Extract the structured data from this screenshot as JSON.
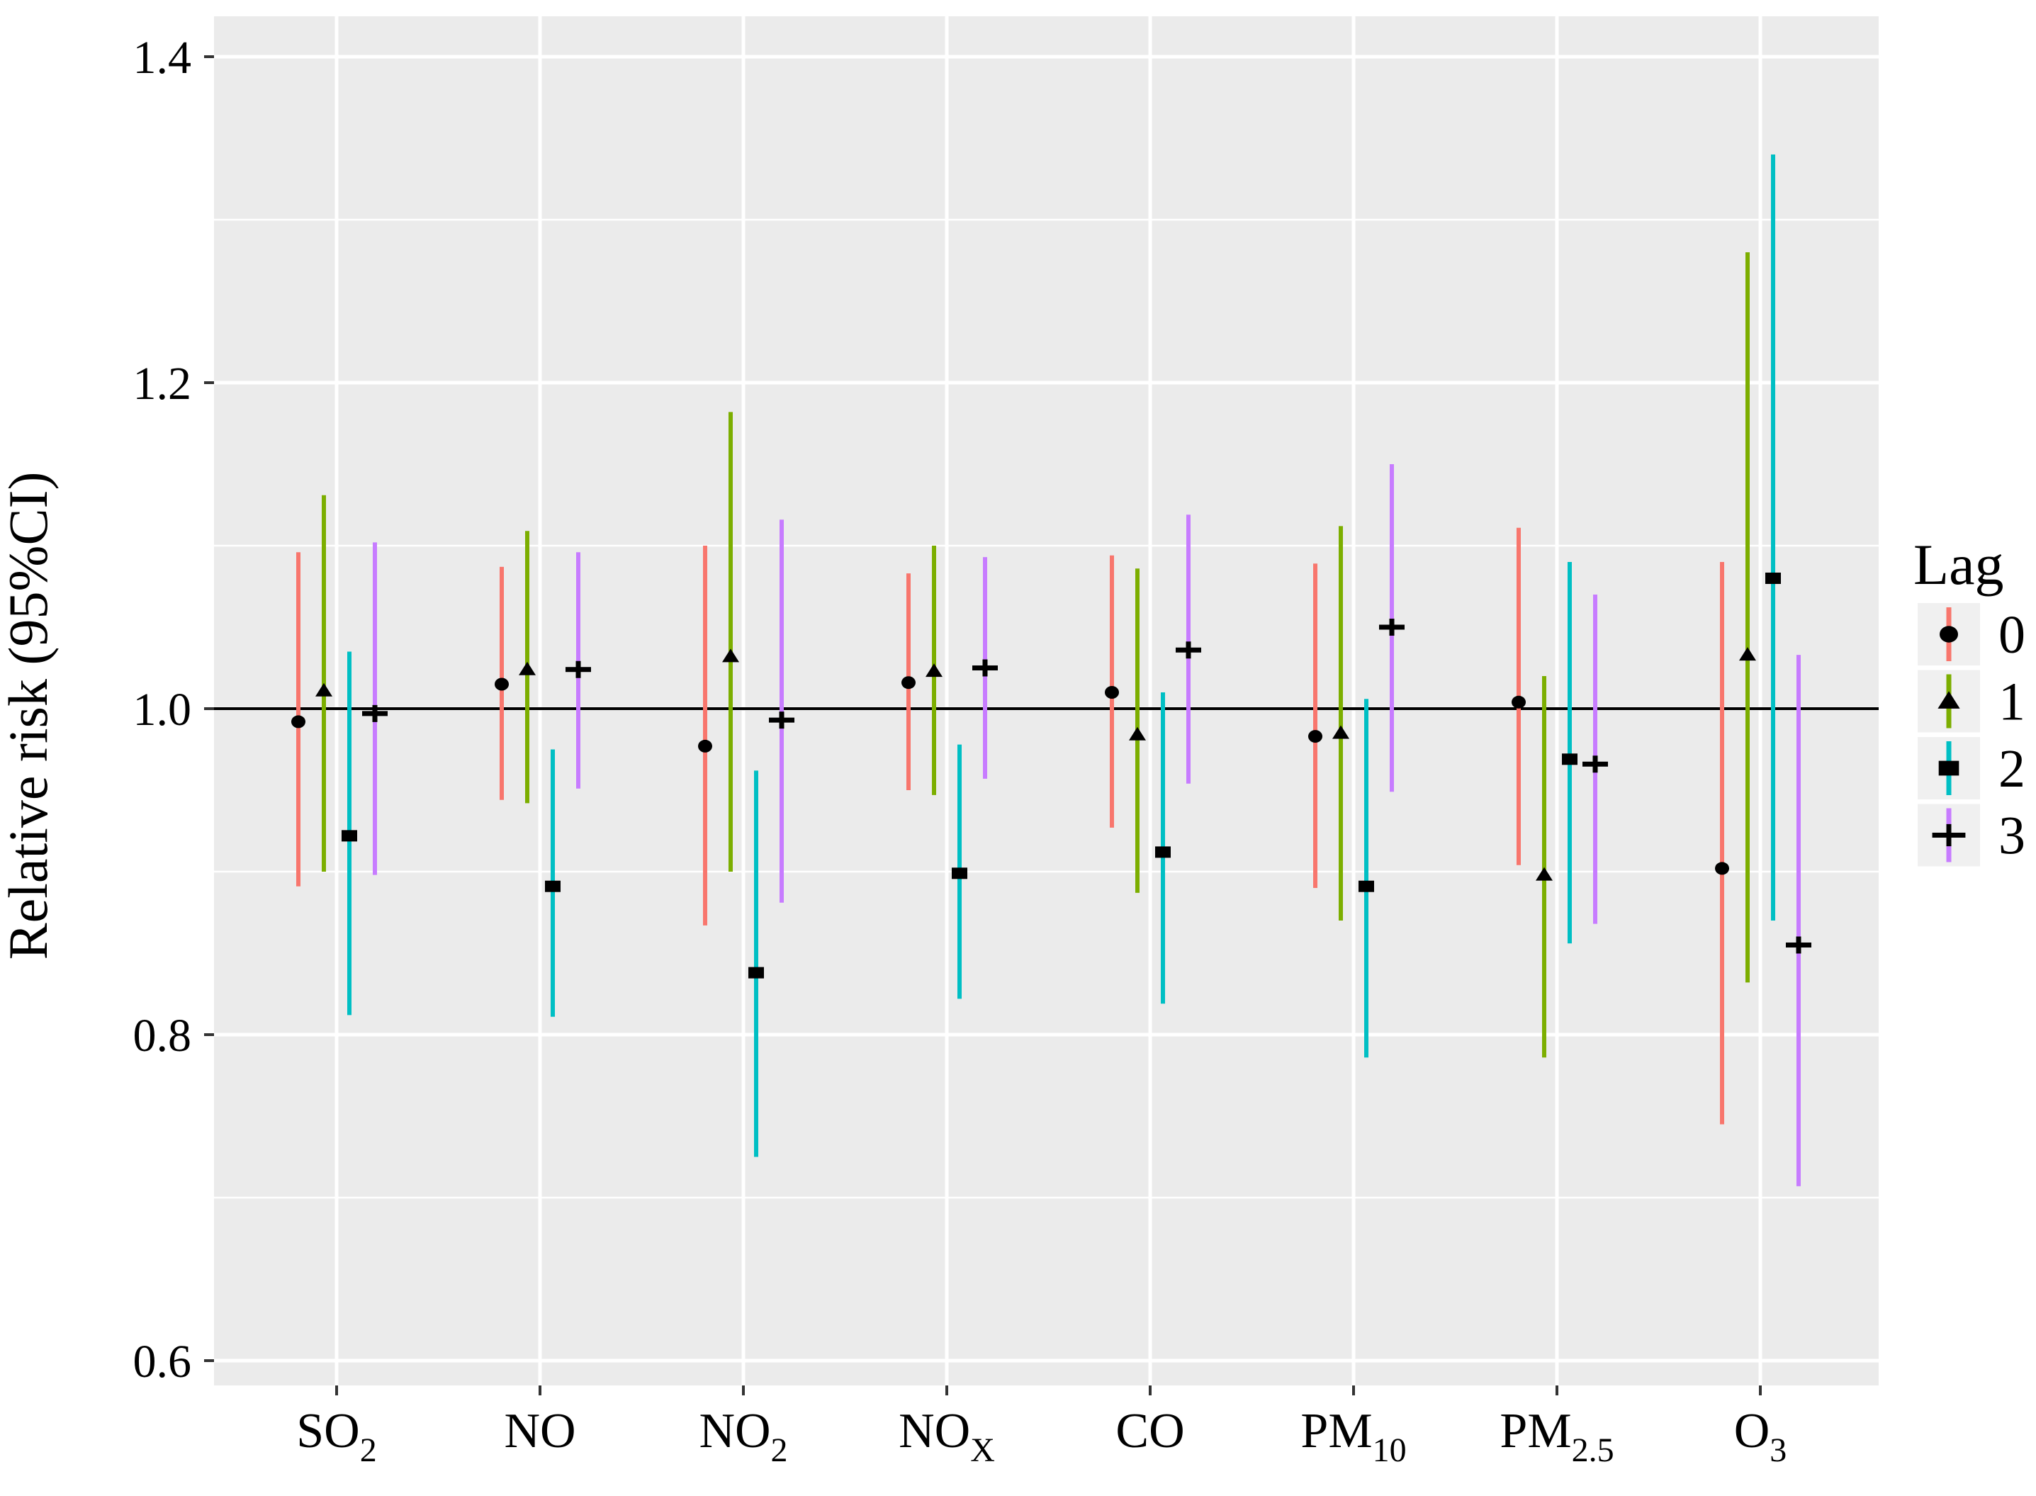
{
  "chart_data": {
    "type": "scatter",
    "subtype": "dodged-point-ranges-forest-plot",
    "title": "",
    "xlabel": "",
    "ylabel": "Relative risk (95%CI)",
    "ylim": [
      0.585,
      1.425
    ],
    "yticks": [
      0.6,
      0.8,
      1.0,
      1.2,
      1.4
    ],
    "ytick_labels": [
      "0.6",
      "0.8",
      "1.0",
      "1.2",
      "1.4"
    ],
    "minor_yticks": [
      0.7,
      0.9,
      1.1,
      1.3
    ],
    "reference_line": 1.0,
    "grid": "on",
    "panel_bg": "#ebebeb",
    "grid_color": "#ffffff",
    "marker_color": "#000000",
    "categories": [
      {
        "main": "SO",
        "sub": "2"
      },
      {
        "main": "NO",
        "sub": ""
      },
      {
        "main": "NO",
        "sub": "2"
      },
      {
        "main": "NO",
        "sub": "X"
      },
      {
        "main": "CO",
        "sub": ""
      },
      {
        "main": "PM",
        "sub": "10"
      },
      {
        "main": "PM",
        "sub": "2.5"
      },
      {
        "main": "O",
        "sub": "3"
      }
    ],
    "legend": {
      "title": "Lag",
      "position": "right"
    },
    "series": [
      {
        "name": "0",
        "marker": "circle",
        "color": "#F8766D",
        "values": [
          {
            "est": 0.992,
            "lo": 0.891,
            "hi": 1.096
          },
          {
            "est": 1.015,
            "lo": 0.944,
            "hi": 1.087
          },
          {
            "est": 0.977,
            "lo": 0.867,
            "hi": 1.1
          },
          {
            "est": 1.016,
            "lo": 0.95,
            "hi": 1.083
          },
          {
            "est": 1.01,
            "lo": 0.927,
            "hi": 1.094
          },
          {
            "est": 0.983,
            "lo": 0.89,
            "hi": 1.089
          },
          {
            "est": 1.004,
            "lo": 0.904,
            "hi": 1.111
          },
          {
            "est": 0.902,
            "lo": 0.745,
            "hi": 1.09
          }
        ]
      },
      {
        "name": "1",
        "marker": "triangle",
        "color": "#7CAE00",
        "values": [
          {
            "est": 1.011,
            "lo": 0.9,
            "hi": 1.131
          },
          {
            "est": 1.024,
            "lo": 0.942,
            "hi": 1.109
          },
          {
            "est": 1.032,
            "lo": 0.9,
            "hi": 1.182
          },
          {
            "est": 1.023,
            "lo": 0.947,
            "hi": 1.1
          },
          {
            "est": 0.984,
            "lo": 0.887,
            "hi": 1.086
          },
          {
            "est": 0.985,
            "lo": 0.87,
            "hi": 1.112
          },
          {
            "est": 0.898,
            "lo": 0.786,
            "hi": 1.02
          },
          {
            "est": 1.033,
            "lo": 0.832,
            "hi": 1.28
          }
        ]
      },
      {
        "name": "2",
        "marker": "square",
        "color": "#00BFC4",
        "values": [
          {
            "est": 0.922,
            "lo": 0.812,
            "hi": 1.035
          },
          {
            "est": 0.891,
            "lo": 0.811,
            "hi": 0.975
          },
          {
            "est": 0.838,
            "lo": 0.725,
            "hi": 0.962
          },
          {
            "est": 0.899,
            "lo": 0.822,
            "hi": 0.978
          },
          {
            "est": 0.912,
            "lo": 0.819,
            "hi": 1.01
          },
          {
            "est": 0.891,
            "lo": 0.786,
            "hi": 1.006
          },
          {
            "est": 0.969,
            "lo": 0.856,
            "hi": 1.09
          },
          {
            "est": 1.08,
            "lo": 0.87,
            "hi": 1.34
          }
        ]
      },
      {
        "name": "3",
        "marker": "plus",
        "color": "#C77CFF",
        "values": [
          {
            "est": 0.997,
            "lo": 0.898,
            "hi": 1.102
          },
          {
            "est": 1.024,
            "lo": 0.951,
            "hi": 1.096
          },
          {
            "est": 0.993,
            "lo": 0.881,
            "hi": 1.116
          },
          {
            "est": 1.025,
            "lo": 0.957,
            "hi": 1.093
          },
          {
            "est": 1.036,
            "lo": 0.954,
            "hi": 1.119
          },
          {
            "est": 1.05,
            "lo": 0.949,
            "hi": 1.15
          },
          {
            "est": 0.966,
            "lo": 0.868,
            "hi": 1.07
          },
          {
            "est": 0.855,
            "lo": 0.707,
            "hi": 1.033
          }
        ]
      }
    ]
  }
}
